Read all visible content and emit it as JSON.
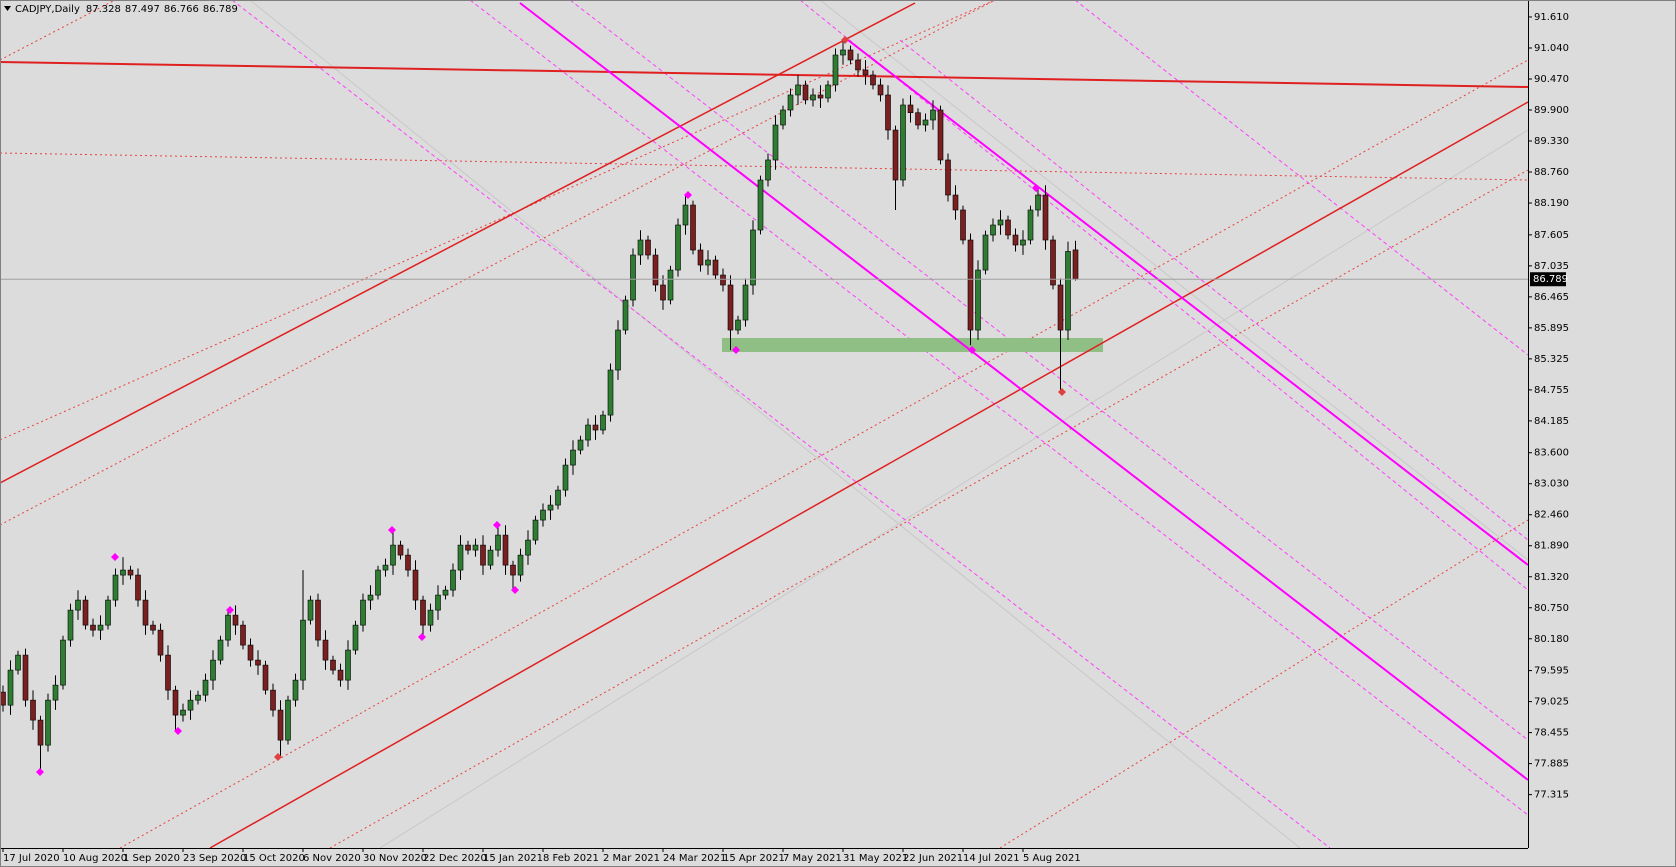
{
  "chart_data": {
    "type": "candlestick",
    "title": "CADJPY,Daily",
    "categories": [
      "17 Jul 2020",
      null,
      null,
      null,
      null,
      null,
      null,
      null,
      "10 Aug 2020",
      null,
      null,
      null,
      null,
      null,
      null,
      null,
      "1 Sep 2020",
      null,
      null,
      null,
      null,
      null,
      null,
      null,
      "23 Sep 2020",
      null,
      null,
      null,
      null,
      null,
      null,
      null,
      "15 Oct 2020",
      null,
      null,
      null,
      null,
      null,
      null,
      null,
      "6 Nov 2020",
      null,
      null,
      null,
      null,
      null,
      null,
      null,
      "30 Nov 2020",
      null,
      null,
      null,
      null,
      null,
      null,
      null,
      "22 Dec 2020",
      null,
      null,
      null,
      null,
      null,
      null,
      null,
      "15 Jan 2021",
      null,
      null,
      null,
      null,
      null,
      null,
      null,
      "8 Feb 2021",
      null,
      null,
      null,
      null,
      null,
      null,
      null,
      "2 Mar 2021",
      null,
      null,
      null,
      null,
      null,
      null,
      null,
      "24 Mar 2021",
      null,
      null,
      null,
      null,
      null,
      null,
      null,
      "15 Apr 2021",
      null,
      null,
      null,
      null,
      null,
      null,
      null,
      "7 May 2021",
      null,
      null,
      null,
      null,
      null,
      null,
      null,
      "31 May 2021",
      null,
      null,
      null,
      null,
      null,
      null,
      null,
      "22 Jun 2021",
      null,
      null,
      null,
      null,
      null,
      null,
      null,
      "14 Jul 2021",
      null,
      null,
      null,
      null,
      null,
      null,
      null,
      "5 Aug 2021",
      null,
      null,
      null,
      null,
      null,
      null,
      null
    ],
    "open": [
      79.2,
      78.96,
      79.604,
      79.88,
      79.052,
      78.685,
      78.225,
      79.052,
      79.328,
      80.156,
      80.707,
      80.891,
      80.431,
      80.339,
      80.431,
      80.891,
      81.351,
      81.443,
      81.351,
      80.891,
      80.431,
      80.339,
      79.88,
      79.236,
      78.777,
      78.869,
      79.052,
      79.144,
      79.42,
      79.788,
      80.156,
      80.615,
      80.431,
      80.064,
      79.788,
      79.696,
      79.236,
      78.869,
      78.317,
      79.052,
      79.42,
      80.523,
      80.891,
      80.156,
      79.788,
      79.604,
      79.42,
      79.972,
      80.431,
      80.891,
      80.983,
      81.443,
      81.534,
      81.902,
      81.718,
      81.443,
      80.891,
      80.431,
      80.707,
      80.983,
      81.075,
      81.443,
      81.902,
      81.81,
      81.902,
      81.534,
      81.81,
      82.086,
      81.534,
      81.351,
      81.718,
      81.994,
      82.362,
      82.546,
      82.638,
      82.913,
      83.373,
      83.649,
      83.833,
      84.109,
      84.017,
      84.292,
      85.12,
      85.855,
      86.407,
      87.234,
      87.51,
      87.234,
      86.683,
      86.407,
      86.958,
      87.786,
      88.153,
      87.326,
      87.05,
      87.142,
      86.866,
      86.683,
      85.855,
      86.039,
      86.683,
      87.694,
      88.613,
      88.981,
      89.624,
      89.9,
      90.176,
      90.36,
      90.084,
      90.176,
      90.12,
      90.36,
      90.911,
      91.003,
      90.819,
      90.636,
      90.544,
      90.36,
      90.176,
      89.532,
      88.613,
      89.992,
      89.85,
      89.624,
      89.716,
      89.9,
      88.981,
      88.337,
      88.062,
      87.51,
      85.855,
      86.958,
      87.602,
      87.786,
      87.878,
      87.602,
      87.418,
      87.51,
      88.062,
      88.337,
      87.51,
      86.683,
      85.855,
      87.328
    ],
    "high": [
      79.32,
      79.784,
      79.96,
      80.0,
      79.232,
      78.765,
      79.172,
      79.508,
      80.236,
      80.827,
      81.071,
      80.971,
      80.551,
      80.611,
      80.971,
      81.471,
      81.682,
      81.523,
      81.471,
      81.071,
      80.511,
      80.459,
      80.06,
      79.316,
      78.989,
      79.232,
      79.224,
      79.54,
      79.968,
      80.236,
      80.735,
      80.795,
      80.511,
      80.184,
      79.968,
      79.776,
      79.356,
      79.049,
      79.132,
      79.54,
      81.443,
      80.971,
      81.011,
      80.336,
      79.868,
      79.724,
      80.152,
      80.511,
      81.011,
      81.163,
      81.523,
      81.654,
      82.178,
      81.982,
      81.838,
      81.623,
      80.971,
      80.827,
      81.163,
      81.155,
      81.563,
      82.082,
      81.982,
      82.022,
      82.082,
      81.89,
      82.27,
      82.266,
      81.614,
      81.838,
      82.174,
      82.442,
      82.666,
      82.818,
      82.993,
      83.493,
      83.829,
      83.913,
      84.229,
      84.289,
      84.372,
      85.24,
      86.035,
      86.487,
      87.354,
      87.69,
      87.59,
      87.354,
      86.863,
      87.038,
      87.906,
      88.337,
      88.233,
      87.446,
      87.322,
      87.222,
      86.986,
      86.863,
      86.119,
      86.803,
      87.874,
      88.693,
      89.101,
      89.804,
      89.98,
      90.296,
      90.54,
      90.44,
      90.296,
      90.356,
      90.44,
      91.031,
      91.187,
      91.083,
      90.939,
      90.816,
      90.624,
      90.48,
      90.356,
      89.612,
      90.112,
      90.172,
      89.93,
      89.836,
      90.08,
      89.98,
      89.101,
      88.517,
      88.142,
      87.63,
      87.138,
      87.682,
      87.906,
      88.058,
      87.958,
      87.722,
      87.69,
      88.142,
      88.466,
      88.517,
      87.59,
      86.803,
      87.48,
      87.497
    ],
    "low": [
      78.84,
      78.78,
      79.524,
      78.932,
      78.505,
      77.729,
      78.105,
      78.872,
      79.248,
      80.036,
      80.527,
      80.351,
      80.219,
      80.159,
      80.351,
      80.771,
      81.171,
      81.271,
      80.771,
      80.251,
      80.259,
      79.76,
      79.056,
      78.482,
      78.657,
      78.689,
      78.972,
      79.024,
      79.24,
      79.708,
      80.036,
      80.251,
      79.984,
      79.668,
      79.516,
      79.156,
      78.749,
      78.004,
      78.237,
      78.932,
      79.24,
      80.443,
      80.036,
      79.608,
      79.524,
      79.3,
      79.24,
      79.892,
      80.311,
      80.711,
      80.903,
      81.323,
      81.354,
      81.638,
      81.323,
      80.711,
      80.211,
      80.311,
      80.527,
      80.903,
      80.955,
      81.263,
      81.73,
      81.69,
      81.354,
      81.454,
      81.69,
      81.354,
      81.075,
      81.231,
      81.538,
      81.914,
      82.242,
      82.366,
      82.558,
      82.793,
      83.193,
      83.569,
      83.713,
      83.837,
      83.937,
      84.172,
      84.94,
      85.775,
      86.287,
      87.054,
      87.154,
      86.563,
      86.227,
      86.327,
      86.838,
      87.606,
      87.246,
      86.93,
      86.87,
      86.786,
      86.563,
      85.487,
      85.775,
      85.919,
      86.503,
      87.614,
      88.493,
      88.801,
      89.544,
      89.78,
      89.996,
      90.004,
      89.964,
      89.94,
      90.04,
      90.24,
      90.731,
      90.739,
      90.516,
      90.364,
      90.28,
      90.056,
      89.352,
      88.062,
      88.493,
      89.67,
      89.544,
      89.504,
      89.536,
      88.901,
      88.217,
      87.882,
      87.43,
      85.579,
      85.675,
      86.878,
      87.482,
      87.606,
      87.522,
      87.298,
      87.238,
      87.43,
      87.942,
      87.33,
      86.603,
      84.752,
      85.675,
      86.766
    ],
    "close": [
      78.96,
      79.604,
      79.88,
      79.052,
      78.685,
      78.225,
      79.052,
      79.328,
      80.156,
      80.707,
      80.891,
      80.431,
      80.339,
      80.431,
      80.891,
      81.351,
      81.443,
      81.351,
      80.891,
      80.431,
      80.339,
      79.88,
      79.236,
      78.777,
      78.869,
      79.052,
      79.144,
      79.42,
      79.788,
      80.156,
      80.615,
      80.431,
      80.064,
      79.788,
      79.696,
      79.236,
      78.869,
      78.317,
      79.052,
      79.42,
      80.523,
      80.891,
      80.156,
      79.788,
      79.604,
      79.42,
      79.972,
      80.431,
      80.891,
      80.983,
      81.443,
      81.534,
      81.902,
      81.718,
      81.443,
      80.891,
      80.431,
      80.707,
      80.983,
      81.075,
      81.443,
      81.902,
      81.81,
      81.902,
      81.534,
      81.81,
      82.086,
      81.534,
      81.351,
      81.718,
      81.994,
      82.362,
      82.546,
      82.638,
      82.913,
      83.373,
      83.649,
      83.833,
      84.109,
      84.017,
      84.292,
      85.12,
      85.855,
      86.407,
      87.234,
      87.51,
      87.234,
      86.683,
      86.407,
      86.958,
      87.786,
      88.153,
      87.326,
      87.05,
      87.142,
      86.866,
      86.683,
      85.855,
      86.039,
      86.683,
      87.694,
      88.613,
      88.981,
      89.624,
      89.9,
      90.176,
      90.36,
      90.084,
      90.176,
      90.12,
      90.36,
      90.911,
      91.003,
      90.819,
      90.636,
      90.544,
      90.36,
      90.176,
      89.532,
      88.613,
      89.992,
      89.85,
      89.624,
      89.716,
      89.9,
      88.981,
      88.337,
      88.062,
      87.51,
      85.855,
      86.958,
      87.602,
      87.786,
      87.878,
      87.602,
      87.418,
      87.51,
      88.062,
      88.337,
      87.51,
      86.683,
      85.855,
      87.3,
      86.789
    ],
    "up_color": "#2f7d32",
    "down_color": "#7a2020",
    "ylim": [
      76.334,
      91.922
    ],
    "yticks": [
      {
        "value": 91.61,
        "label": "91.610"
      },
      {
        "value": 91.04,
        "label": "91.040"
      },
      {
        "value": 90.47,
        "label": "90.470"
      },
      {
        "value": 89.9,
        "label": "89.900"
      },
      {
        "value": 89.33,
        "label": "89.330"
      },
      {
        "value": 88.76,
        "label": "88.760"
      },
      {
        "value": 88.19,
        "label": "88.190"
      },
      87.605,
      87.035,
      86.465,
      85.895,
      85.325,
      84.755,
      84.185,
      {
        "value": 83.6,
        "label": "83.600"
      },
      {
        "value": 83.03,
        "label": "83.030"
      },
      {
        "value": 82.46,
        "label": "82.460"
      },
      {
        "value": 81.89,
        "label": "81.890"
      },
      {
        "value": 81.32,
        "label": "81.320"
      },
      {
        "value": 80.75,
        "label": "80.750"
      },
      {
        "value": 80.18,
        "label": "80.180"
      },
      79.595,
      79.025,
      78.455,
      77.885,
      77.315
    ],
    "grid": false
  }
}
